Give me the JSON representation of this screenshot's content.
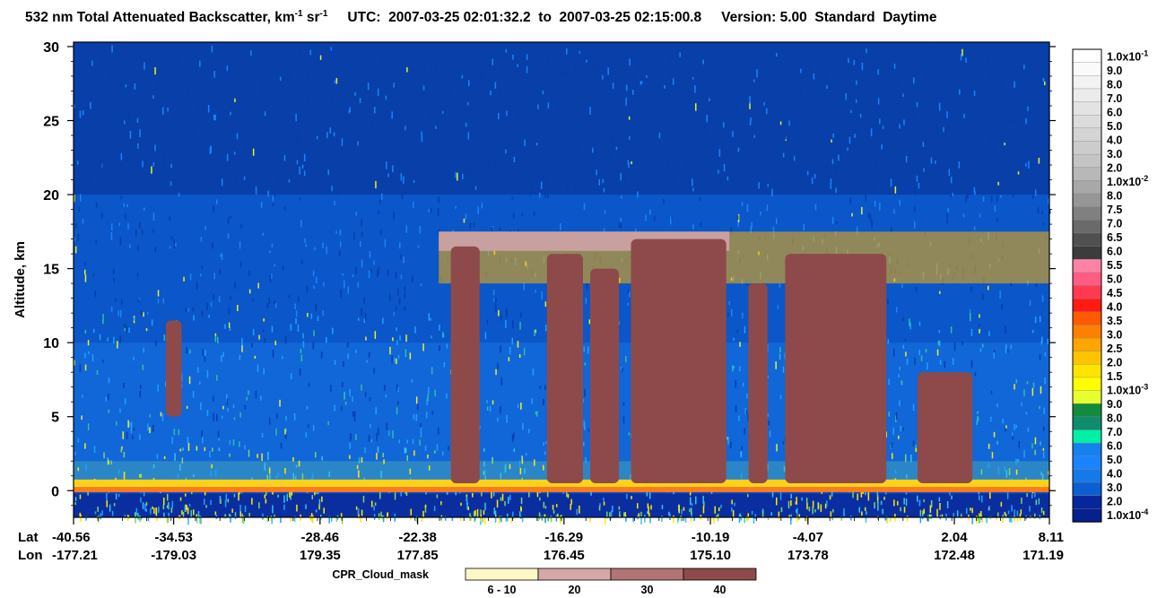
{
  "title": {
    "product": "532 nm Total Attenuated Backscatter, km",
    "unit_exp1": "-1",
    "unit_sr": " sr",
    "unit_exp2": "-1",
    "utc_label": "UTC:",
    "utc_start": "2007-03-25 02:01:32.2",
    "utc_to": "to",
    "utc_end": "2007-03-25 02:15:00.8",
    "version": "Version: 5.00",
    "standard": "Standard",
    "daytime": "Daytime"
  },
  "chart_data": [
    {
      "type": "heatmap",
      "title": "532 nm Total Attenuated Backscatter, km-1 sr-1",
      "ylabel": "Altitude, km",
      "ylim": [
        -1.8,
        30.3
      ],
      "yticks": [
        "0",
        "5",
        "10",
        "15",
        "20",
        "25",
        "30"
      ],
      "ytick_values": [
        0,
        5,
        10,
        15,
        20,
        25,
        30
      ],
      "x_row_labels": [
        "Lat",
        "Lon"
      ],
      "lat": [
        "-40.56",
        "-34.53",
        "-28.46",
        "-22.38",
        "-16.29",
        "-10.19",
        "-4.07",
        "2.04",
        "8.11"
      ],
      "lon": [
        "-177.21",
        "-179.03",
        "179.35",
        "177.85",
        "176.45",
        "175.10",
        "173.78",
        "172.48",
        "171.19"
      ],
      "x_position_fraction": [
        0.0,
        0.1026,
        0.2526,
        0.3526,
        0.5026,
        0.6526,
        0.7526,
        0.9026,
        1.0
      ],
      "clouds_cpr_mask_40": [
        {
          "lat": [
            -35.0,
            -34.2
          ],
          "alt": [
            5.0,
            11.5
          ]
        },
        {
          "lat": [
            -21.0,
            -19.8
          ],
          "alt": [
            0.5,
            16.5
          ]
        },
        {
          "lat": [
            -17.0,
            -15.5
          ],
          "alt": [
            0.5,
            16.0
          ]
        },
        {
          "lat": [
            -15.2,
            -14.0
          ],
          "alt": [
            0.5,
            15.0
          ]
        },
        {
          "lat": [
            -13.5,
            -9.2
          ],
          "alt": [
            0.5,
            17.0
          ]
        },
        {
          "lat": [
            -7.8,
            -6.6
          ],
          "alt": [
            0.5,
            14.0
          ]
        },
        {
          "lat": [
            -5.5,
            -0.8
          ],
          "alt": [
            0.5,
            16.0
          ]
        },
        {
          "lat": [
            0.5,
            3.2
          ],
          "alt": [
            0.5,
            8.0
          ]
        }
      ],
      "cirrus_layer_altitude_km": [
        14.0,
        17.5
      ]
    },
    {
      "type": "heatmap",
      "title": "colorbar",
      "labels": [
        "1.0x10-1",
        "9.0",
        "8.0",
        "7.0",
        "6.0",
        "5.0",
        "4.0",
        "3.0",
        "2.0",
        "1.0x10-2",
        "8.0",
        "7.5",
        "7.0",
        "6.5",
        "6.0",
        "5.5",
        "5.0",
        "4.5",
        "4.0",
        "3.5",
        "3.0",
        "2.5",
        "2.0",
        "1.5",
        "1.0x10-3",
        "9.0",
        "8.0",
        "7.0",
        "6.0",
        "5.0",
        "4.0",
        "3.0",
        "2.0",
        "1.0x10-4"
      ],
      "colors": [
        "#ffffff",
        "#fafafa",
        "#f2f2f2",
        "#ebebeb",
        "#e3e3e3",
        "#dcdcdc",
        "#d4d4d4",
        "#cccccc",
        "#c4c4c4",
        "#b8b8b8",
        "#a8a8a8",
        "#969696",
        "#808080",
        "#6a6a6a",
        "#505050",
        "#3c3c3c",
        "#ff82a6",
        "#ff5c82",
        "#ff3a50",
        "#ff1a14",
        "#ff5a00",
        "#ff7f00",
        "#ffa500",
        "#ffc400",
        "#ffe400",
        "#ffff00",
        "#e8ff2e",
        "#128c3c",
        "#0f8c6e",
        "#00f0a4",
        "#1580f0",
        "#1a84ff",
        "#137ae8",
        "#0b5fd0",
        "#08269c",
        "#06208e"
      ]
    },
    {
      "type": "heatmap",
      "title": "CPR_Cloud_mask",
      "categories": [
        "6 - 10",
        "20",
        "30",
        "40"
      ],
      "colors": [
        "#fdf7c7",
        "#d6a7a7",
        "#b27474",
        "#8e4a4a"
      ]
    }
  ]
}
